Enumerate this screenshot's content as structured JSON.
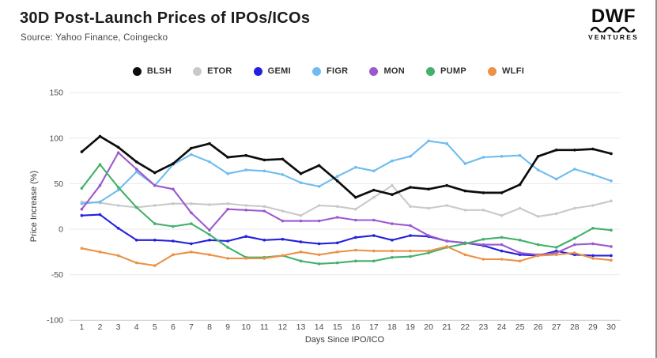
{
  "header": {
    "title": "30D Post-Launch Prices of IPOs/ICOs",
    "source": "Source: Yahoo Finance, Coingecko",
    "logo": {
      "brand": "DWF",
      "subbrand": "VENTURES"
    }
  },
  "chart_data": {
    "type": "line",
    "title": "30D Post-Launch Prices of IPOs/ICOs",
    "xlabel": "Days Since IPO/ICO",
    "ylabel": "Price Increase (%)",
    "x": [
      1,
      2,
      3,
      4,
      5,
      6,
      7,
      8,
      9,
      10,
      11,
      12,
      13,
      14,
      15,
      16,
      17,
      18,
      19,
      20,
      21,
      22,
      23,
      24,
      25,
      26,
      27,
      28,
      29,
      30
    ],
    "yticks": [
      150,
      100,
      50,
      0,
      -50,
      -100
    ],
    "ylim": [
      -100,
      150
    ],
    "grid": "horizontal",
    "legend_position": "top-center",
    "series": [
      {
        "name": "BLSH",
        "color": "#0c0c0c",
        "values": [
          85,
          102,
          90,
          74,
          62,
          72,
          89,
          94,
          79,
          81,
          76,
          77,
          61,
          70,
          53,
          35,
          43,
          38,
          46,
          44,
          48,
          42,
          40,
          40,
          49,
          80,
          87,
          87,
          88,
          83
        ]
      },
      {
        "name": "ETOR",
        "color": "#c9c9c9",
        "values": [
          30,
          29,
          26,
          24,
          26,
          28,
          28,
          27,
          28,
          26,
          25,
          20,
          15,
          26,
          25,
          22,
          35,
          48,
          25,
          23,
          26,
          21,
          21,
          15,
          23,
          14,
          17,
          23,
          26,
          31
        ]
      },
      {
        "name": "GEMI",
        "color": "#2420dd",
        "values": [
          15,
          16,
          1,
          -12,
          -12,
          -13,
          -16,
          -12,
          -13,
          -8,
          -12,
          -11,
          -14,
          -16,
          -15,
          -9,
          -7,
          -12,
          -7,
          -8,
          -13,
          -15,
          -18,
          -24,
          -28,
          -29,
          -24,
          -28,
          -29,
          -29
        ]
      },
      {
        "name": "FIGR",
        "color": "#6ebcf0",
        "values": [
          28,
          30,
          43,
          63,
          48,
          71,
          82,
          74,
          61,
          65,
          64,
          60,
          51,
          47,
          58,
          68,
          64,
          75,
          80,
          97,
          94,
          72,
          79,
          80,
          81,
          65,
          55,
          66,
          60,
          53
        ]
      },
      {
        "name": "MON",
        "color": "#9b59d0",
        "values": [
          22,
          48,
          84,
          66,
          48,
          44,
          18,
          -1,
          22,
          21,
          20,
          9,
          9,
          9,
          13,
          10,
          10,
          6,
          4,
          -7,
          -13,
          -15,
          -17,
          -17,
          -26,
          -28,
          -26,
          -17,
          -16,
          -19
        ]
      },
      {
        "name": "PUMP",
        "color": "#43b06b",
        "values": [
          45,
          71,
          46,
          24,
          6,
          3,
          6,
          -6,
          -20,
          -31,
          -31,
          -29,
          -35,
          -38,
          -37,
          -35,
          -35,
          -31,
          -30,
          -26,
          -20,
          -16,
          -11,
          -9,
          -12,
          -17,
          -20,
          -10,
          1,
          -1
        ]
      },
      {
        "name": "WLFI",
        "color": "#ec9247",
        "values": [
          -21,
          -25,
          -29,
          -37,
          -40,
          -28,
          -25,
          -28,
          -32,
          -32,
          -32,
          -29,
          -25,
          -28,
          -25,
          -23,
          -24,
          -24,
          -24,
          -24,
          -19,
          -28,
          -33,
          -33,
          -35,
          -29,
          -28,
          -26,
          -32,
          -34
        ]
      }
    ]
  }
}
